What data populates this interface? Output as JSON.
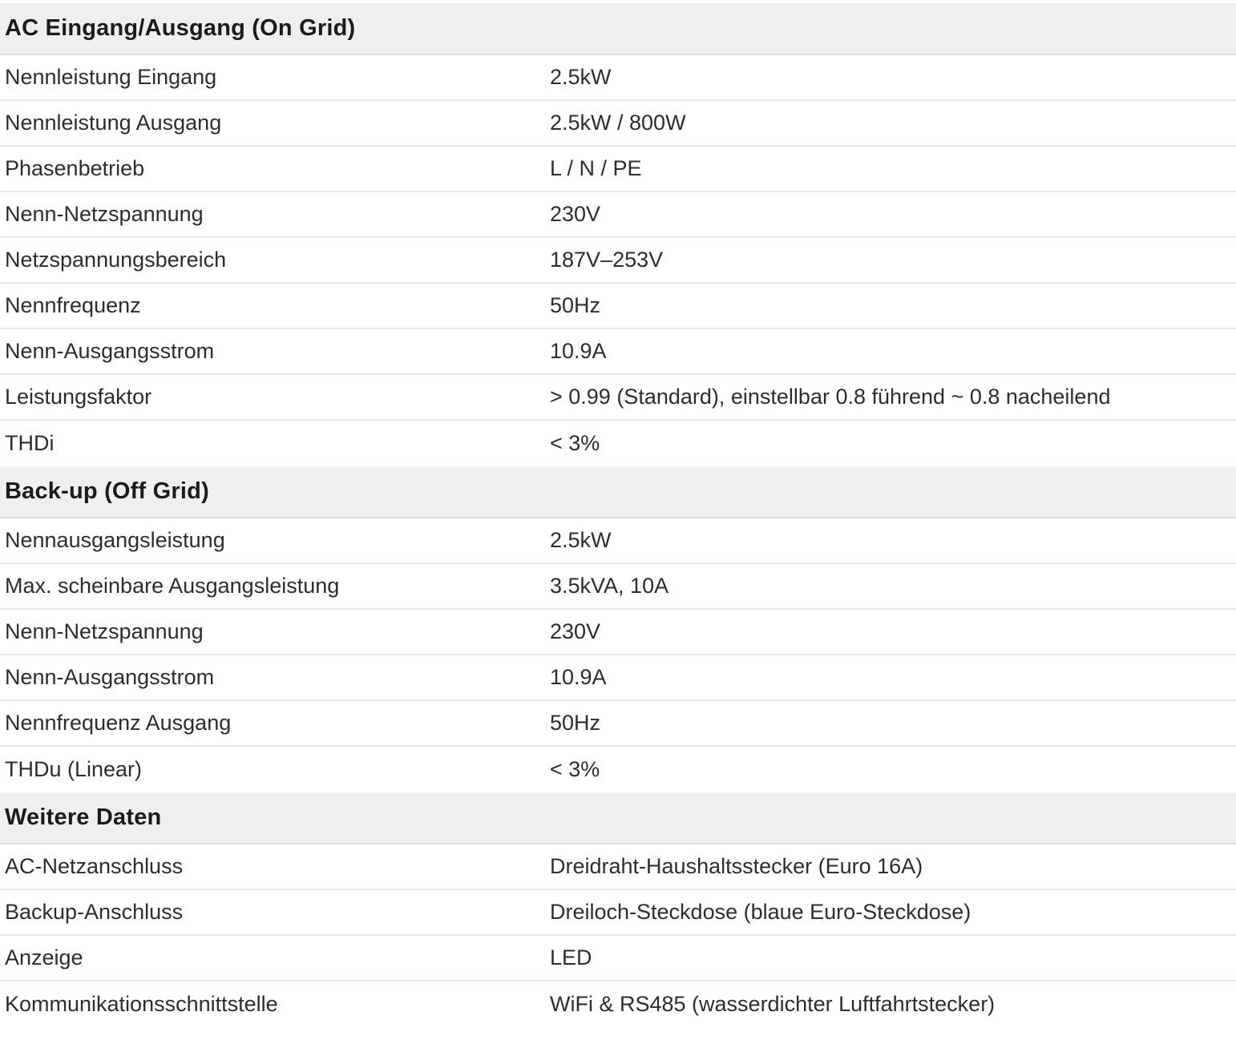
{
  "colors": {
    "page_background": "#ffffff",
    "section_header_background": "#efefef",
    "section_header_border": "#dcdcdc",
    "row_border": "#e8e8e8",
    "heading_text": "#1b1b1b",
    "body_text": "#2d2d2d"
  },
  "table": {
    "sections": [
      {
        "title": "AC Eingang/Ausgang (On Grid)",
        "rows": [
          {
            "label": "Nennleistung Eingang",
            "value": "2.5kW"
          },
          {
            "label": "Nennleistung Ausgang",
            "value": "2.5kW / 800W"
          },
          {
            "label": "Phasenbetrieb",
            "value": "L / N / PE"
          },
          {
            "label": "Nenn-Netzspannung",
            "value": "230V"
          },
          {
            "label": "Netzspannungsbereich",
            "value": "187V–253V"
          },
          {
            "label": "Nennfrequenz",
            "value": "50Hz"
          },
          {
            "label": "Nenn-Ausgangsstrom",
            "value": "10.9A"
          },
          {
            "label": "Leistungsfaktor",
            "value": "> 0.99 (Standard), einstellbar 0.8 führend ~ 0.8 nacheilend"
          },
          {
            "label": "THDi",
            "value": "< 3%"
          }
        ]
      },
      {
        "title": "Back-up (Off Grid)",
        "rows": [
          {
            "label": "Nennausgangsleistung",
            "value": "2.5kW"
          },
          {
            "label": "Max. scheinbare Ausgangsleistung",
            "value": "3.5kVA, 10A"
          },
          {
            "label": "Nenn-Netzspannung",
            "value": "230V"
          },
          {
            "label": "Nenn-Ausgangsstrom",
            "value": "10.9A"
          },
          {
            "label": "Nennfrequenz Ausgang",
            "value": "50Hz"
          },
          {
            "label": "THDu (Linear)",
            "value": "< 3%"
          }
        ]
      },
      {
        "title": "Weitere Daten",
        "rows": [
          {
            "label": "AC-Netzanschluss",
            "value": "Dreidraht-Haushaltsstecker (Euro 16A)"
          },
          {
            "label": "Backup-Anschluss",
            "value": "Dreiloch-Steckdose (blaue Euro-Steckdose)"
          },
          {
            "label": "Anzeige",
            "value": "LED"
          },
          {
            "label": "Kommunikationsschnittstelle",
            "value": "WiFi & RS485 (wasserdichter Luftfahrtstecker)"
          }
        ]
      }
    ]
  }
}
